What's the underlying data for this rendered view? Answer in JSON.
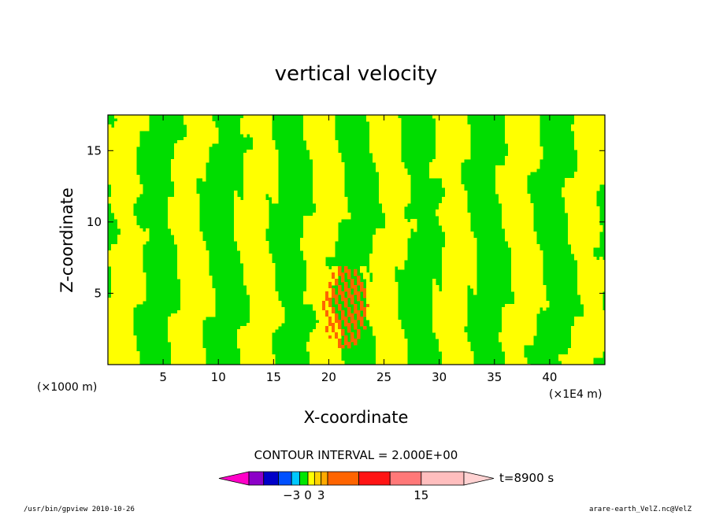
{
  "colors": {
    "positive": "#ffff00",
    "negative": "#00dd00",
    "contour": "#000000",
    "frame": "#000000"
  },
  "chart_data": {
    "type": "contour",
    "title": "vertical velocity",
    "xlabel": "X-coordinate",
    "ylabel": "Z-coordinate",
    "x_unit_left": "(×1000 m)",
    "x_unit_right": "(×1E4 m)",
    "xlim": [
      0,
      45
    ],
    "ylim": [
      0,
      17.5
    ],
    "x_ticks": [
      5,
      10,
      15,
      20,
      25,
      30,
      35,
      40
    ],
    "y_ticks": [
      5,
      10,
      15
    ],
    "contour_interval_label": "CONTOUR INTERVAL = 2.000E+00",
    "time_label": "t=8900 s",
    "colorbar": {
      "tick_values": [
        -3,
        0,
        3,
        15
      ],
      "tick_labels": [
        "−3",
        "0",
        "3",
        "15"
      ],
      "colors": [
        "#ff00c8",
        "#8c00c8",
        "#0000c8",
        "#0050ff",
        "#00c8ff",
        "#00e600",
        "#ffff00",
        "#ffd200",
        "#ffaa00",
        "#ff6400",
        "#ff1414",
        "#ff7878",
        "#ffbebe",
        "#ffd2d2"
      ]
    },
    "footer_left": "/usr/bin/gpview   2010-10-26",
    "footer_right": "arare-earth_VelZ.nc@VelZ"
  }
}
